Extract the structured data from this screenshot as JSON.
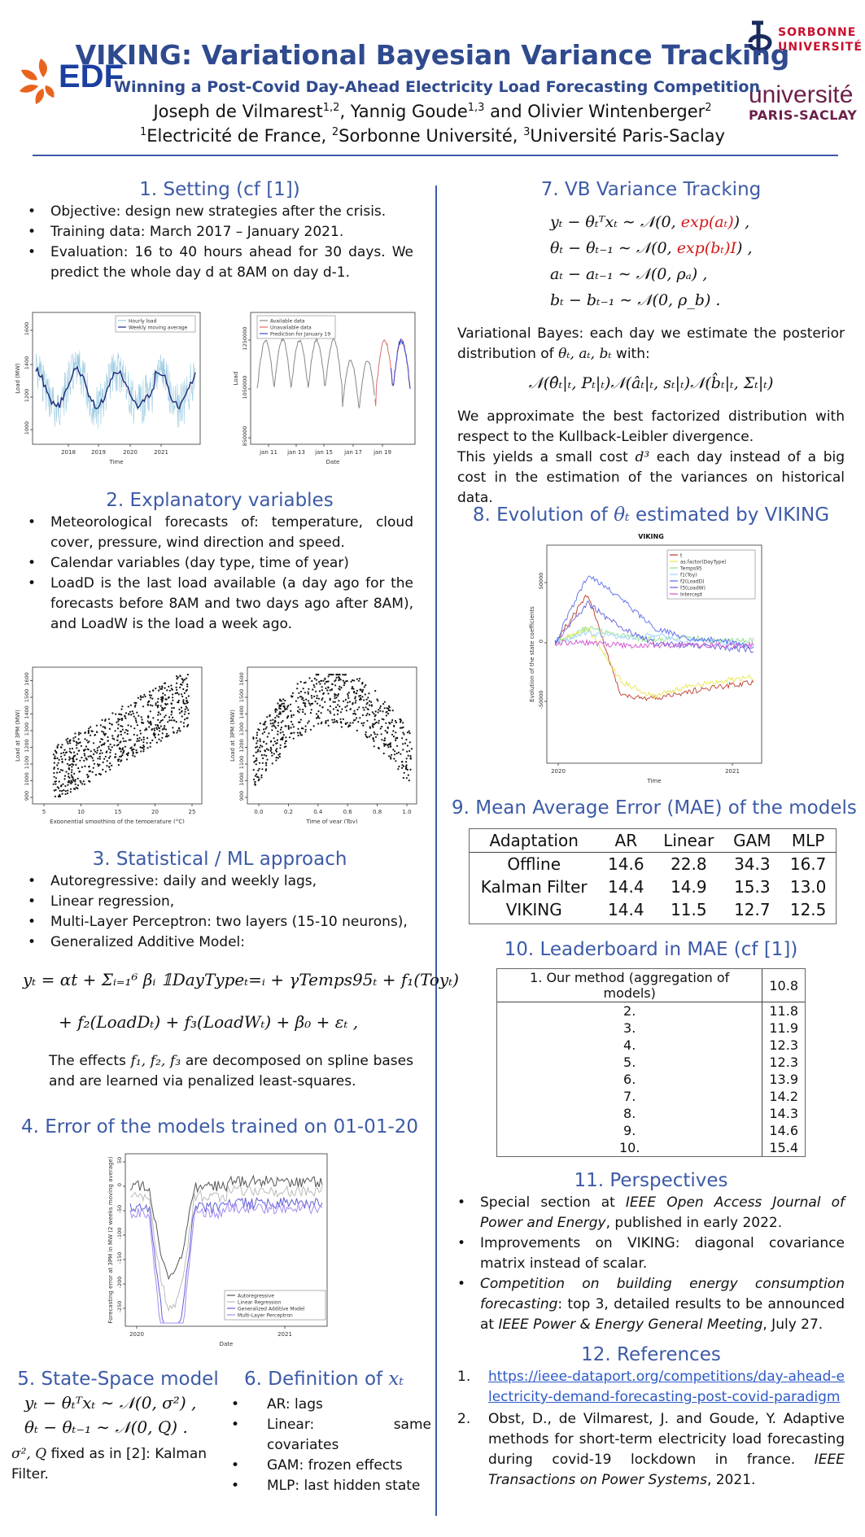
{
  "header": {
    "title": "VIKING: Variational Bayesian Variance Tracking",
    "subtitle": "Winning a Post-Covid Day-Ahead Electricity Load Forecasting Competition",
    "authors": {
      "a1": "Joseph de Vilmarest",
      "a1_sup": "1,2",
      "a2": ", Yannig Goude",
      "a2_sup": "1,3",
      "a3": " and Olivier Wintenberger",
      "a3_sup": "2"
    },
    "affiliations": {
      "s1": "1",
      "t1": "Electricité de France, ",
      "s2": "2",
      "t2": "Sorbonne Université, ",
      "s3": "3",
      "t3": "Université Paris-Saclay"
    },
    "logos": {
      "edf": "EDF",
      "sorbonne_1": "SORBONNE",
      "sorbonne_2": "UNIVERSITÉ",
      "saclay_1": "université",
      "saclay_2": "PARIS-SACLAY"
    }
  },
  "colors": {
    "accent": "#3c5aa6",
    "title": "#2f4a8e",
    "edf_orange": "#e8641e",
    "saclay": "#6b1f4b",
    "sorbonne": "#c8102e"
  },
  "setting": {
    "title": "1. Setting (cf [1])",
    "items": [
      "Objective: design new strategies after the crisis.",
      "Training data: March 2017 – January 2021.",
      "Evaluation: 16 to 40 hours ahead for 30 days. We predict the whole day d at 8AM on day d-1."
    ],
    "chart_load": {
      "legend": [
        "Hourly load",
        "Weekly moving average"
      ],
      "ylabel": "Load (MW)",
      "xlabel": "Time",
      "xticks": [
        "2018",
        "2019",
        "2020",
        "2021"
      ],
      "yticks": [
        "1000",
        "1200",
        "1400",
        "1600"
      ]
    },
    "chart_pred": {
      "legend": [
        "Available data",
        "Unavailable data",
        "Prediction for January 19"
      ],
      "ylabel": "Load",
      "xlabel": "Date",
      "xticks": [
        "jan 11",
        "jan 13",
        "jan 15",
        "jan 17",
        "jan 19"
      ],
      "yticks": [
        "850000",
        "1050000",
        "1250000"
      ]
    }
  },
  "explanatory": {
    "title": "2. Explanatory variables",
    "items": [
      "Meteorological forecasts of: temperature, cloud cover, pressure, wind direction and speed.",
      "Calendar variables (day type, time of year)",
      "LoadD is the last load available (a day ago for the forecasts before 8AM and two days ago after 8AM), and LoadW is the load a week ago."
    ],
    "scatter_temp": {
      "ylabel": "Load at 3PM (MW)",
      "xlabel": "Exponential smoothing of the temperature (°C)",
      "xticks": [
        "5",
        "10",
        "15",
        "20",
        "25"
      ],
      "yticks": [
        "900",
        "1000",
        "1100",
        "1200",
        "1300",
        "1400",
        "1500",
        "1600"
      ]
    },
    "scatter_toy": {
      "ylabel": "Load at 3PM (MW)",
      "xlabel": "Time of year (Toy)",
      "xticks": [
        "0.0",
        "0.2",
        "0.4",
        "0.6",
        "0.8",
        "1.0"
      ],
      "yticks": [
        "900",
        "1000",
        "1100",
        "1200",
        "1300",
        "1400",
        "1500",
        "1600"
      ]
    }
  },
  "statml": {
    "title": "3. Statistical / ML approach",
    "items": [
      "Autoregressive: daily and weekly lags,",
      "Linear regression,",
      "Multi-Layer Perceptron: two layers (15-10 neurons),",
      "Generalized Additive Model:"
    ],
    "eq_line1": "yₜ = αt + Σᵢ₌₁⁶ βᵢ 𝟙DayTypeₜ=ᵢ + γTemps95ₜ + f₁(Toyₜ)",
    "eq_line2": "+ f₂(LoadDₜ) + f₃(LoadWₜ) + β₀ + εₜ ,",
    "note_pre": "The effects ",
    "note_math": "f₁, f₂, f₃",
    "note_post": " are decomposed on spline bases and are learned via penalized least-squares."
  },
  "errors": {
    "title": "4. Error of the models trained on 01-01-20",
    "chart": {
      "ylabel": "Forecasting error at 3PM in MW (2 weeks moving average)",
      "xlabel": "Date",
      "xticks": [
        "2020",
        "2021"
      ],
      "yticks": [
        "50",
        "0",
        "-50",
        "-100",
        "-150",
        "-200",
        "-250"
      ],
      "legend": [
        "Autoregressive",
        "Linear Regression",
        "Generalized Additive Model",
        "Multi-Layer Perceptron"
      ]
    }
  },
  "statespace": {
    "title": "5. State-Space model",
    "eq1": "yₜ − θₜᵀxₜ ∼ 𝒩(0, σ²) ,",
    "eq2": "θₜ − θₜ₋₁ ∼ 𝒩(0, Q) .",
    "note_math": "σ², Q",
    "note_text": " fixed as in [2]: Kalman Filter."
  },
  "definition": {
    "title_text": "6. Definition of ",
    "title_math": "xₜ",
    "items": [
      "AR: lags",
      "Linear: same covariates",
      "GAM: frozen effects",
      "MLP: last hidden state"
    ]
  },
  "vb": {
    "title": "7. VB Variance Tracking",
    "eq1a": "yₜ − θₜᵀxₜ ∼ 𝒩(0, ",
    "eq1b": "exp(aₜ)",
    "eq1c": ") ,",
    "eq2a": "θₜ − θₜ₋₁ ∼ 𝒩(0, ",
    "eq2b": "exp(bₜ)I",
    "eq2c": ") ,",
    "eq3": "aₜ − aₜ₋₁ ∼ 𝒩(0, ρₐ) ,",
    "eq4": "bₜ − bₜ₋₁ ∼ 𝒩(0, ρ_b) .",
    "para1_pre": "Variational Bayes: each day we estimate the posterior distribution of ",
    "para1_math": "θₜ, aₜ, bₜ",
    "para1_post": " with:",
    "eq_post": "𝒩(θ̂ₜ|ₜ, Pₜ|ₜ)𝒩(âₜ|ₜ, sₜ|ₜ)𝒩(b̂ₜ|ₜ, Σₜ|ₜ)",
    "para2": "We approximate the best factorized distribution with respect to the Kullback-Leibler divergence.",
    "para3_pre": "This yields a small cost ",
    "para3_math": "d³",
    "para3_post": " each day instead of a big cost in the estimation of the variances on historical data."
  },
  "evolution": {
    "title_pre": "8. Evolution of ",
    "title_math": "θₜ",
    "title_post": " estimated by VIKING",
    "chart": {
      "title": "VIKING",
      "ylabel": "Evolution of the state coefficients",
      "xlabel": "Time",
      "xticks": [
        "2020",
        "2021"
      ],
      "yticks": [
        "50000",
        "0",
        "-50000"
      ],
      "legend": [
        "t",
        "as.factor(DayType)",
        "Temps95",
        "f1(Toy)",
        "f2(LoadD)",
        "f3(LoadW)",
        "Intercept"
      ]
    }
  },
  "mae": {
    "title": "9. Mean Average Error (MAE) of the models",
    "headers": [
      "Adaptation",
      "AR",
      "Linear",
      "GAM",
      "MLP"
    ],
    "rows": [
      [
        "Offline",
        "14.6",
        "22.8",
        "34.3",
        "16.7"
      ],
      [
        "Kalman Filter",
        "14.4",
        "14.9",
        "15.3",
        "13.0"
      ],
      [
        "VIKING",
        "14.4",
        "11.5",
        "12.7",
        "12.5"
      ]
    ]
  },
  "leaderboard": {
    "title": "10. Leaderboard in MAE (cf [1])",
    "rows": [
      [
        "1. Our method (aggregation of models)",
        "10.8"
      ],
      [
        "2.",
        "11.8"
      ],
      [
        "3.",
        "11.9"
      ],
      [
        "4.",
        "12.3"
      ],
      [
        "5.",
        "12.3"
      ],
      [
        "6.",
        "13.9"
      ],
      [
        "7.",
        "14.2"
      ],
      [
        "8.",
        "14.3"
      ],
      [
        "9.",
        "14.6"
      ],
      [
        "10.",
        "15.4"
      ]
    ]
  },
  "perspectives": {
    "title": "11. Perspectives",
    "p1_pre": "Special section at ",
    "p1_em": "IEEE Open Access Journal of Power and Energy",
    "p1_post": ", published in early 2022.",
    "p2": "Improvements on VIKING: diagonal covariance matrix instead of scalar.",
    "p3_em": "Competition on building energy consumption forecasting",
    "p3_mid": ": top 3, detailed results to be announced at ",
    "p3_em2": "IEEE Power & Energy General Meeting",
    "p3_post": ", July 27."
  },
  "references": {
    "title": "12. References",
    "r1_num": "1.",
    "r1_link": "https://ieee-dataport.org/competitions/day-ahead-electricity-demand-forecasting-post-covid-paradigm",
    "r2_num": "2.",
    "r2_text": "Obst, D., de Vilmarest, J. and Goude, Y. Adaptive methods for short-term electricity load forecasting during covid-19 lockdown in france. ",
    "r2_em": "IEEE Transactions on Power Systems",
    "r2_post": ", 2021."
  }
}
